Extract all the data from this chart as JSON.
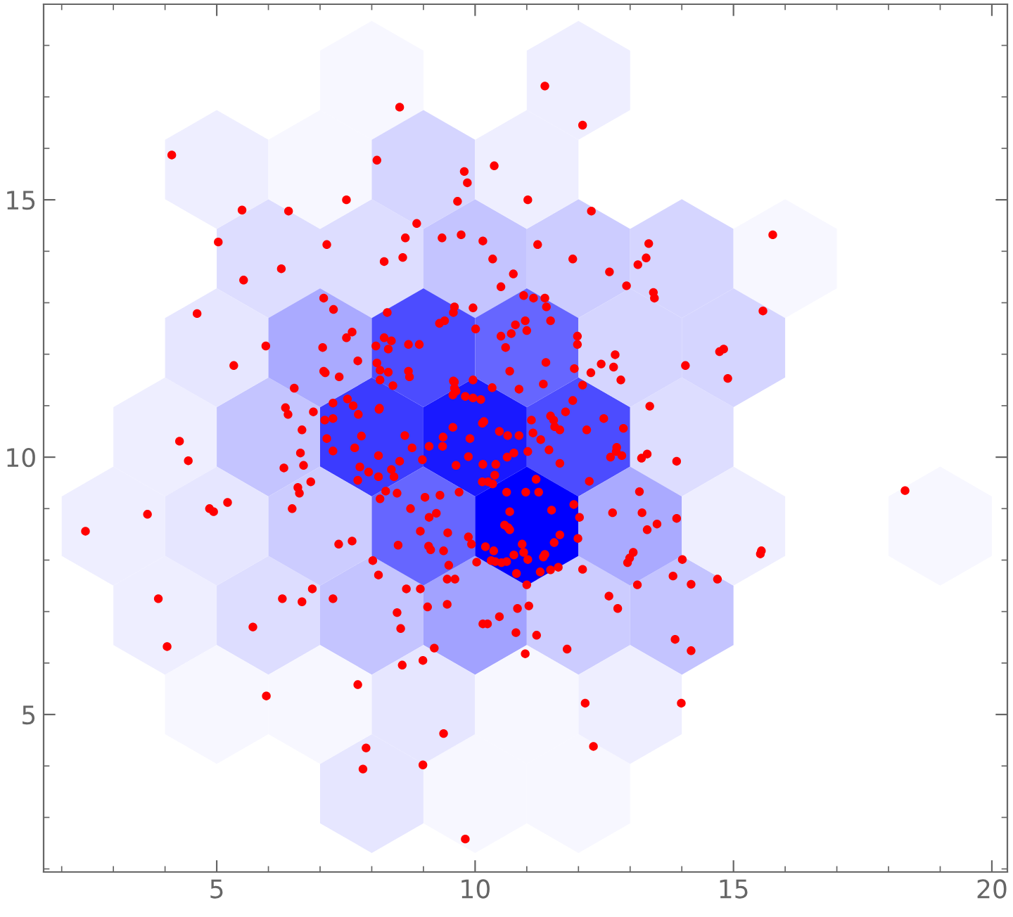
{
  "chart_data": {
    "type": "scatter",
    "marker": "circle",
    "xlim": [
      1.65,
      20.3
    ],
    "ylim": [
      1.94,
      18.8
    ],
    "xticks": [
      5,
      10,
      15,
      20
    ],
    "yticks": [
      5,
      10,
      15
    ],
    "series": [
      {
        "color": "#ff0000",
        "x": [
          11.35,
          8.54,
          12.08,
          4.13,
          8.1,
          10.37,
          9.79,
          9.85,
          7.51,
          9.66,
          11.02,
          5.49,
          6.39,
          12.25,
          8.87,
          5.03,
          7.13,
          8.65,
          9.36,
          10.15,
          11.21,
          13.36,
          15.76,
          11.89,
          12.6,
          13.15,
          13.31,
          8.24,
          8.6,
          10.34,
          6.25,
          5.52,
          10.74,
          10.5,
          12.93,
          13.45,
          13.47,
          7.07,
          10.94,
          7.26,
          8.3,
          9.58,
          9.6,
          11.35,
          11.38,
          11.13,
          15.57,
          4.62,
          11.46,
          9.41,
          9.31,
          10.01,
          10.5,
          10.78,
          10.97,
          11.0,
          7.62,
          7.51,
          7.05,
          8.08,
          8.32,
          8.24,
          8.71,
          8.92,
          5.95,
          10.7,
          10.59,
          11.98,
          11.98,
          12.71,
          14.81,
          14.73,
          5.33,
          14.07,
          9.96,
          11.92,
          12.44,
          12.68,
          14.89,
          12.82,
          7.07,
          7.1,
          8.16,
          8.71,
          8.73,
          9.58,
          9.6,
          10.67,
          11.32,
          7.37,
          8.16,
          6.5,
          9.73,
          6.33,
          6.38,
          6.87,
          6.65,
          7.09,
          7.25,
          7.25,
          7.53,
          7.64,
          7.74,
          7.13,
          7.8,
          7.67,
          4.28,
          8.14,
          7.73,
          9.96,
          8.38,
          8.1,
          8.32,
          8.41,
          11.37,
          12.24,
          13.38,
          12.08,
          11.89,
          11.75,
          12.49,
          12.87,
          12.16,
          11.46,
          11.52,
          11.54,
          11.64,
          11.09,
          11.12,
          11.27,
          10.85,
          10.63,
          10.47,
          10.17,
          10.14,
          10.33,
          10.85,
          10.11,
          9.96,
          9.81,
          9.6,
          9.63,
          9.57,
          9.57,
          9.9,
          9.38,
          9.37,
          9.11,
          8.64,
          8.78,
          8.15,
          12.74,
          8.13,
          7.77,
          8.54,
          8.38,
          8.43,
          8.13,
          7.94,
          7.73,
          8.98,
          9.63,
          9.87,
          10.15,
          10.4,
          10.14,
          10.25,
          10.34,
          10.38,
          10.62,
          10.75,
          11.02,
          11.43,
          11.64,
          12.21,
          12.62,
          12.73,
          12.84,
          13.22,
          13.33,
          13.9,
          8.27,
          8.49,
          8.16,
          8.75,
          9.03,
          9.32,
          9.69,
          9.11,
          9.25,
          8.94,
          8.51,
          9.1,
          9.14,
          9.39,
          9.47,
          9.87,
          9.93,
          9.49,
          9.46,
          9.61,
          10.03,
          10.2,
          10.36,
          10.61,
          10.98,
          11.23,
          11.18,
          10.67,
          10.57,
          10.64,
          10.67,
          10.31,
          10.39,
          10.51,
          10.61,
          10.75,
          10.8,
          10.91,
          10.94,
          11.02,
          11.26,
          11.32,
          11.35,
          11.46,
          11.61,
          11.53,
          11.64,
          11.99,
          11.48,
          11.91,
          12.02,
          12.66,
          13.18,
          13.23,
          13.33,
          13.52,
          13.9,
          12.95,
          12.99,
          13.06,
          13.14,
          12.08,
          12.59,
          12.76,
          14.01,
          13.83,
          13.87,
          12.13,
          12.29,
          13.99,
          11.78,
          11.19,
          10.97,
          10.79,
          11.04,
          10.82,
          10.47,
          10.24,
          10.15,
          11.0,
          9.46,
          9.08,
          9.21,
          8.99,
          8.59,
          8.56,
          8.49,
          8.67,
          8.94,
          8.02,
          8.13,
          7.73,
          9.39,
          7.89,
          7.83,
          8.99,
          9.81,
          7.62,
          4.45,
          3.66,
          2.46,
          4.86,
          4.94,
          5.21,
          6.3,
          6.62,
          6.68,
          6.57,
          6.6,
          6.82,
          6.46,
          7.25,
          7.36,
          6.85,
          6.27,
          6.65,
          7.25,
          5.7,
          3.87,
          4.04,
          5.96,
          14.18,
          14.69,
          15.54,
          15.52,
          18.32,
          14.18
        ],
        "values": [
          17.21,
          16.8,
          16.45,
          15.87,
          15.77,
          15.66,
          15.55,
          15.33,
          15.0,
          14.97,
          15.0,
          14.8,
          14.78,
          14.78,
          14.54,
          14.18,
          14.13,
          14.26,
          14.26,
          14.2,
          14.13,
          14.15,
          14.32,
          13.85,
          13.6,
          13.74,
          13.87,
          13.8,
          13.88,
          13.85,
          13.66,
          13.44,
          13.56,
          13.31,
          13.33,
          13.2,
          13.09,
          13.09,
          13.14,
          12.87,
          12.81,
          12.81,
          12.92,
          13.09,
          12.92,
          13.09,
          12.84,
          12.79,
          12.65,
          12.65,
          12.6,
          12.49,
          12.35,
          12.57,
          12.65,
          12.46,
          12.43,
          12.32,
          12.13,
          12.16,
          12.1,
          12.32,
          12.19,
          12.19,
          12.16,
          12.4,
          12.13,
          12.35,
          12.19,
          11.99,
          12.1,
          12.05,
          11.78,
          11.78,
          11.5,
          11.72,
          11.81,
          11.75,
          11.53,
          11.5,
          11.67,
          11.64,
          11.69,
          11.67,
          11.56,
          11.48,
          11.34,
          11.67,
          11.42,
          11.56,
          11.5,
          11.34,
          14.32,
          10.96,
          10.83,
          10.88,
          10.53,
          10.72,
          10.75,
          11.05,
          11.13,
          11.0,
          10.83,
          10.36,
          10.41,
          10.18,
          10.31,
          10.93,
          11.87,
          12.9,
          12.26,
          11.83,
          11.65,
          11.39,
          11.84,
          11.64,
          10.99,
          11.4,
          11.1,
          10.88,
          10.75,
          10.56,
          10.53,
          10.8,
          10.72,
          10.59,
          10.53,
          10.72,
          10.47,
          10.34,
          10.42,
          10.42,
          10.5,
          10.69,
          10.66,
          11.35,
          11.32,
          11.12,
          11.15,
          11.18,
          11.46,
          11.28,
          11.21,
          10.58,
          10.36,
          10.39,
          10.21,
          10.21,
          10.42,
          10.18,
          10.95,
          10.19,
          10.03,
          9.81,
          9.92,
          9.76,
          9.62,
          9.62,
          9.71,
          9.55,
          9.95,
          9.84,
          10.01,
          9.86,
          9.86,
          9.52,
          9.52,
          9.48,
          9.65,
          10.0,
          10.08,
          10.11,
          10.14,
          9.88,
          9.53,
          10.0,
          10.11,
          10.03,
          9.98,
          10.06,
          9.92,
          9.34,
          9.3,
          9.19,
          9.0,
          9.22,
          9.26,
          9.32,
          8.83,
          8.91,
          8.56,
          8.29,
          8.27,
          8.2,
          8.18,
          8.53,
          8.45,
          8.31,
          7.9,
          7.63,
          7.63,
          7.96,
          8.26,
          8.18,
          9.32,
          9.32,
          9.32,
          9.57,
          8.94,
          8.68,
          8.63,
          8.59,
          7.99,
          7.97,
          7.95,
          7.97,
          8.1,
          7.74,
          8.31,
          8.15,
          8.01,
          7.77,
          8.06,
          8.11,
          7.81,
          7.86,
          8.34,
          8.49,
          8.42,
          8.97,
          9.08,
          8.83,
          8.92,
          9.33,
          8.92,
          8.59,
          8.7,
          8.81,
          7.95,
          8.04,
          8.15,
          7.52,
          7.82,
          7.3,
          7.06,
          8.01,
          7.69,
          6.46,
          5.22,
          4.38,
          5.22,
          6.27,
          6.54,
          6.18,
          6.59,
          7.11,
          7.06,
          6.9,
          6.76,
          6.76,
          7.52,
          7.14,
          7.09,
          6.29,
          6.05,
          5.96,
          6.67,
          6.98,
          7.44,
          7.44,
          7.99,
          7.71,
          5.58,
          4.63,
          4.35,
          3.94,
          4.02,
          2.58,
          8.37,
          9.93,
          8.89,
          8.56,
          9.0,
          8.94,
          9.12,
          9.79,
          10.08,
          9.84,
          9.41,
          9.3,
          9.52,
          9.0,
          10.12,
          8.31,
          7.44,
          7.25,
          7.19,
          7.25,
          6.7,
          7.25,
          6.32,
          5.36,
          7.53,
          7.63,
          8.18,
          8.12,
          9.35,
          6.24
        ]
      }
    ]
  }
}
